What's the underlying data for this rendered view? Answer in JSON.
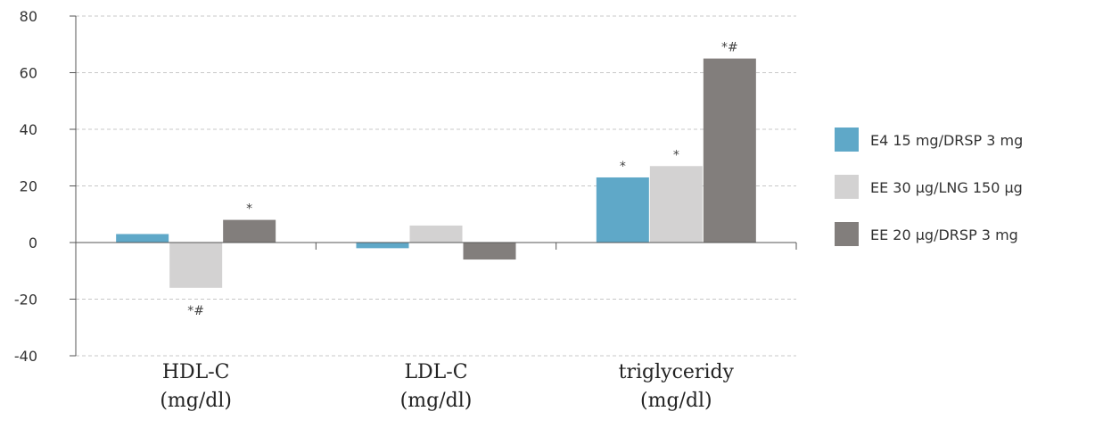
{
  "chart_data": {
    "type": "bar",
    "title": "",
    "xlabel": "",
    "ylabel": "",
    "ylim": [
      -40,
      80
    ],
    "yticks": [
      80,
      60,
      40,
      20,
      0,
      -20,
      -40
    ],
    "grid": true,
    "legend_position": "right",
    "categories": [
      {
        "line1": "HDL-C",
        "line2": "(mg/dl)"
      },
      {
        "line1": "LDL-C",
        "line2": "(mg/dl)"
      },
      {
        "line1": "triglyceridy",
        "line2": "(mg/dl)"
      }
    ],
    "series": [
      {
        "name": "E4 15 mg/DRSP 3 mg",
        "color": "#5fa8c8",
        "values": [
          3,
          -2,
          23
        ],
        "markers": [
          "",
          "",
          "*"
        ]
      },
      {
        "name": "EE 30 µg/LNG 150 µg",
        "color": "#d3d2d2",
        "values": [
          -16,
          6,
          27
        ],
        "markers": [
          "*#",
          "",
          "*"
        ]
      },
      {
        "name": "EE 20 µg/DRSP 3 mg",
        "color": "#827e7c",
        "values": [
          8,
          -6,
          65
        ],
        "markers": [
          "*",
          "",
          "*#"
        ]
      }
    ]
  }
}
